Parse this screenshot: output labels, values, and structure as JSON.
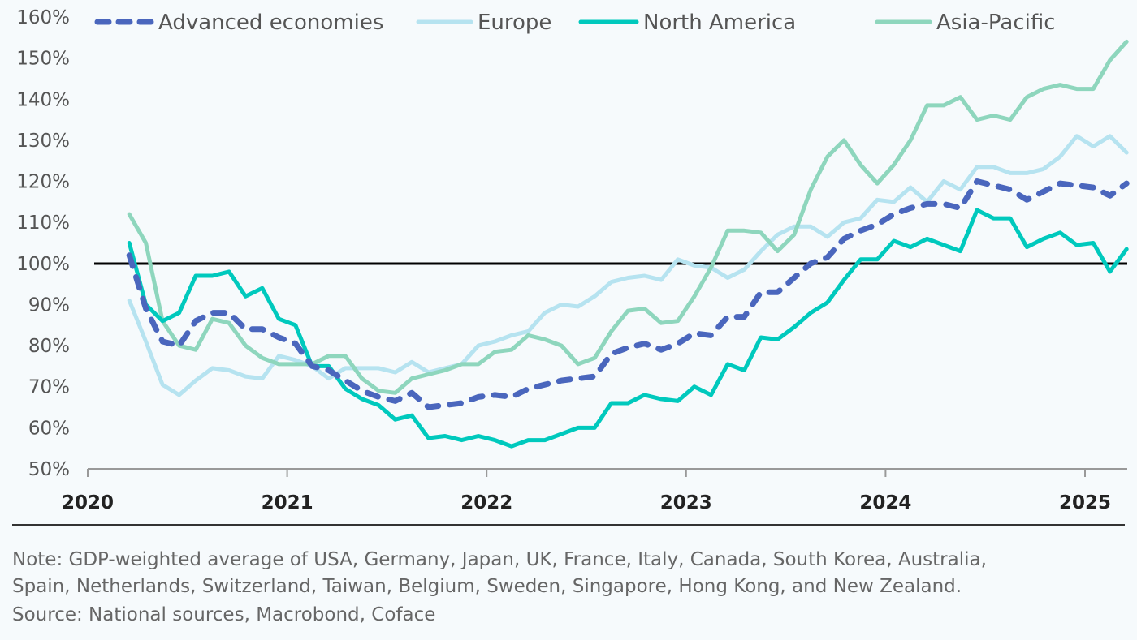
{
  "chart_data": {
    "type": "line",
    "title": "",
    "xlabel": "",
    "ylabel": "",
    "x_start": "2020-03",
    "x_frequency": "monthly",
    "xlim": [
      2020,
      2025.25
    ],
    "ylim": [
      50,
      160
    ],
    "yticks": [
      "50%",
      "60%",
      "70%",
      "80%",
      "90%",
      "100%",
      "110%",
      "120%",
      "130%",
      "140%",
      "150%",
      "160%"
    ],
    "xticks": [
      "2020",
      "2021",
      "2022",
      "2023",
      "2024",
      "2025"
    ],
    "reference_line": 100,
    "legend_position": "top",
    "series": [
      {
        "name": "Advanced economies",
        "color": "#4a66bd",
        "dashed": true,
        "values": [
          102,
          89,
          81,
          80,
          86,
          88,
          88,
          84,
          84,
          82,
          80.5,
          75,
          74,
          71.5,
          69,
          67.5,
          66.5,
          68.5,
          65,
          65.5,
          66,
          67.5,
          68,
          67.5,
          69.5,
          70.5,
          71.5,
          72,
          72.5,
          78,
          79.5,
          80.5,
          79,
          80.5,
          83,
          82.5,
          87,
          87,
          93,
          93,
          96.5,
          100,
          101.5,
          106,
          108,
          109.5,
          112,
          113.5,
          114.5,
          114.5,
          113.5,
          120,
          119,
          118,
          115.5,
          117.5,
          119.5,
          119,
          118.5,
          116.5,
          119.5
        ]
      },
      {
        "name": "Europe",
        "color": "#b6e3f0",
        "dashed": false,
        "values": [
          91,
          81,
          70.5,
          68,
          71.5,
          74.5,
          74,
          72.5,
          72,
          77.5,
          76.5,
          75,
          72,
          74.5,
          74.5,
          74.5,
          73.5,
          76,
          73.5,
          74.5,
          75.5,
          80,
          81,
          82.5,
          83.5,
          88,
          90,
          89.5,
          92,
          95.5,
          96.5,
          97,
          96,
          101,
          99.5,
          99,
          96.5,
          98.5,
          103,
          107,
          109,
          109,
          106.5,
          110,
          111,
          115.5,
          115,
          118.5,
          115,
          120,
          118,
          123.5,
          123.5,
          122,
          122,
          123,
          126,
          131,
          128.5,
          131,
          127
        ]
      },
      {
        "name": "North America",
        "color": "#00c9bd",
        "dashed": false,
        "values": [
          105,
          90,
          86,
          88,
          97,
          97,
          98,
          92,
          94,
          86.5,
          85,
          75,
          75,
          69.5,
          67,
          65.5,
          62,
          63,
          57.5,
          58,
          57,
          58,
          57,
          55.5,
          57,
          57,
          58.5,
          60,
          60,
          66,
          66,
          68,
          67,
          66.5,
          70,
          68,
          75.5,
          74,
          82,
          81.5,
          84.5,
          88,
          90.5,
          96,
          101,
          101,
          105.5,
          104,
          106,
          104.5,
          103,
          113,
          111,
          111,
          104,
          106,
          107.5,
          104.5,
          105,
          98,
          103.5
        ]
      },
      {
        "name": "Asia-Pacific",
        "color": "#8ed6bd",
        "dashed": false,
        "values": [
          112,
          105,
          86,
          80,
          79,
          86.5,
          85.5,
          80,
          77,
          75.5,
          75.5,
          75.5,
          77.5,
          77.5,
          72,
          69,
          68.5,
          72,
          73,
          74,
          75.5,
          75.5,
          78.5,
          79,
          82.5,
          81.5,
          80,
          75.5,
          77,
          83.5,
          88.5,
          89,
          85.5,
          86,
          92,
          99,
          108,
          108,
          107.5,
          103,
          107,
          118,
          126,
          130,
          124,
          119.5,
          124,
          130,
          138.5,
          138.5,
          140.5,
          135,
          136,
          135,
          140.5,
          142.5,
          143.5,
          142.5,
          142.5,
          149.5,
          154
        ]
      }
    ],
    "notes": [
      "Note: GDP-weighted average of USA, Germany, Japan, UK, France, Italy, Canada, South Korea, Australia,",
      "Spain, Netherlands, Switzerland, Taiwan, Belgium, Sweden, Singapore, Hong Kong, and New Zealand.",
      "Source: National sources, Macrobond, Coface"
    ]
  }
}
